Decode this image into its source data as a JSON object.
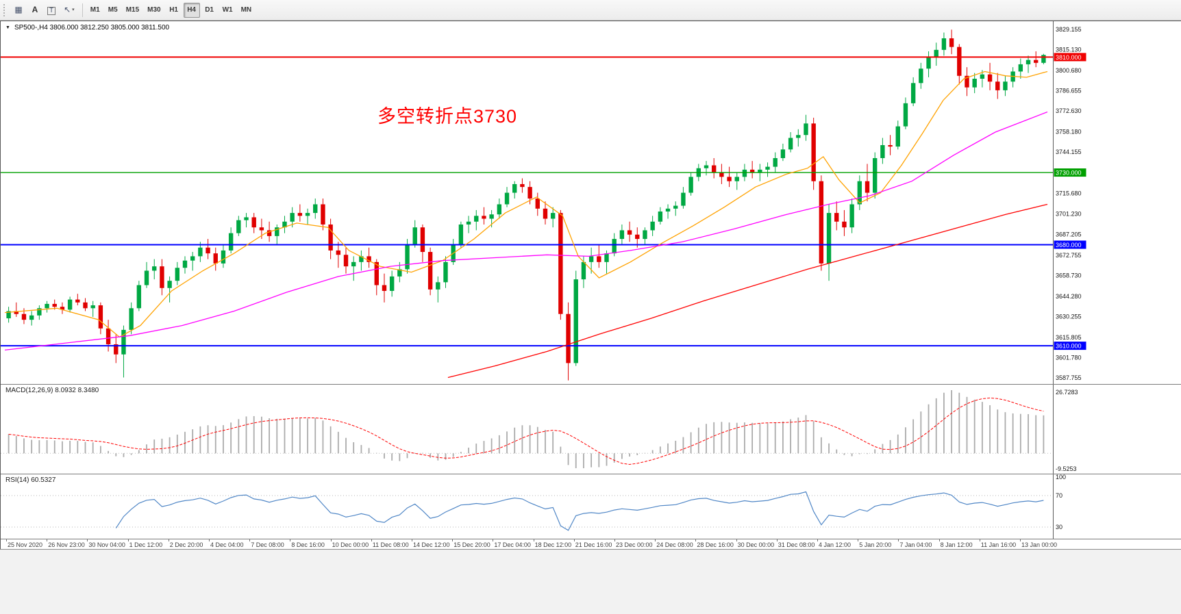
{
  "toolbar": {
    "tools": [
      {
        "name": "charts-panel-button",
        "glyph": "▦",
        "kind": "icon"
      },
      {
        "name": "font-tool-button",
        "glyph": "A",
        "kind": "letter"
      },
      {
        "name": "text-label-tool-button",
        "glyph": "T",
        "kind": "boxed"
      },
      {
        "name": "cursor-tool-button",
        "glyph": "↖",
        "kind": "icon",
        "dropdown_glyph": "▾"
      }
    ],
    "timeframes": [
      "M1",
      "M5",
      "M15",
      "M30",
      "H1",
      "H4",
      "D1",
      "W1",
      "MN"
    ],
    "active_timeframe": "H4"
  },
  "chart": {
    "one_click_glyph": "▼",
    "title_text": "SP500-,H4 3806.000 3812.250 3805.000 3811.500",
    "symbol": "SP500-",
    "timeframe": "H4",
    "annotation": {
      "text": "多空转折点3730",
      "color": "#FF0000"
    },
    "colors": {
      "bull": "#00A843",
      "bear": "#E00000",
      "ma_fast": "#FFA200",
      "ma_mid": "#FF00FF",
      "ma_slow": "#FF0000",
      "macd_histogram": "#ABABAB",
      "macd_signal": "#FF0000",
      "rsi_line": "#4F86C6"
    }
  },
  "chart_data": {
    "type": "candlestick",
    "symbol": "SP500-",
    "timeframe": "H4",
    "y_range": [
      3587.755,
      3829.155
    ],
    "y_axis_ticks": [
      "3829.155",
      "3815.130",
      "3800.680",
      "3786.655",
      "3772.630",
      "3758.180",
      "3744.155",
      "3730.130",
      "3715.680",
      "3701.230",
      "3687.205",
      "3672.755",
      "3658.730",
      "3644.280",
      "3630.255",
      "3615.805",
      "3601.780",
      "3587.755"
    ],
    "x_labels": [
      "25 Nov 2020",
      "26 Nov 23:00",
      "30 Nov 04:00",
      "1 Dec 12:00",
      "2 Dec 20:00",
      "4 Dec 04:00",
      "7 Dec 08:00",
      "8 Dec 16:00",
      "10 Dec 00:00",
      "11 Dec 08:00",
      "14 Dec 12:00",
      "15 Dec 20:00",
      "17 Dec 04:00",
      "18 Dec 12:00",
      "21 Dec 16:00",
      "23 Dec 00:00",
      "24 Dec 08:00",
      "28 Dec 16:00",
      "30 Dec 00:00",
      "31 Dec 08:00",
      "4 Jan 12:00",
      "5 Jan 20:00",
      "7 Jan 04:00",
      "8 Jan 12:00",
      "11 Jan 16:00",
      "13 Jan 00:00"
    ],
    "current_bar_ohlc": [
      3806.0,
      3812.25,
      3805.0,
      3811.5
    ],
    "candles_ohlc": [
      [
        3629,
        3637,
        3626,
        3634
      ],
      [
        3634,
        3640,
        3630,
        3632
      ],
      [
        3632,
        3636,
        3625,
        3628
      ],
      [
        3628,
        3634,
        3624,
        3631
      ],
      [
        3631,
        3638,
        3628,
        3636
      ],
      [
        3636,
        3641,
        3633,
        3639
      ],
      [
        3639,
        3642,
        3635,
        3637
      ],
      [
        3637,
        3640,
        3632,
        3635
      ],
      [
        3635,
        3644,
        3633,
        3642
      ],
      [
        3642,
        3646,
        3638,
        3640
      ],
      [
        3640,
        3643,
        3634,
        3636
      ],
      [
        3636,
        3641,
        3630,
        3638
      ],
      [
        3638,
        3640,
        3618,
        3622
      ],
      [
        3622,
        3628,
        3606,
        3611
      ],
      [
        3611,
        3618,
        3598,
        3604
      ],
      [
        3604,
        3624,
        3588,
        3621
      ],
      [
        3621,
        3640,
        3618,
        3636
      ],
      [
        3636,
        3655,
        3634,
        3652
      ],
      [
        3652,
        3668,
        3650,
        3662
      ],
      [
        3662,
        3670,
        3656,
        3665
      ],
      [
        3665,
        3670,
        3645,
        3650
      ],
      [
        3650,
        3658,
        3640,
        3655
      ],
      [
        3655,
        3668,
        3652,
        3664
      ],
      [
        3664,
        3672,
        3660,
        3669
      ],
      [
        3669,
        3675,
        3662,
        3672
      ],
      [
        3672,
        3682,
        3668,
        3678
      ],
      [
        3678,
        3684,
        3670,
        3674
      ],
      [
        3674,
        3678,
        3662,
        3667
      ],
      [
        3667,
        3680,
        3664,
        3676
      ],
      [
        3676,
        3692,
        3674,
        3688
      ],
      [
        3688,
        3700,
        3686,
        3697
      ],
      [
        3697,
        3702,
        3692,
        3699
      ],
      [
        3699,
        3702,
        3688,
        3692
      ],
      [
        3692,
        3698,
        3684,
        3690
      ],
      [
        3690,
        3696,
        3682,
        3686
      ],
      [
        3686,
        3694,
        3680,
        3692
      ],
      [
        3692,
        3700,
        3688,
        3696
      ],
      [
        3696,
        3706,
        3692,
        3702
      ],
      [
        3702,
        3708,
        3696,
        3700
      ],
      [
        3700,
        3705,
        3694,
        3702
      ],
      [
        3702,
        3712,
        3698,
        3708
      ],
      [
        3708,
        3712,
        3690,
        3694
      ],
      [
        3694,
        3698,
        3670,
        3676
      ],
      [
        3676,
        3682,
        3664,
        3673
      ],
      [
        3673,
        3678,
        3660,
        3665
      ],
      [
        3665,
        3672,
        3655,
        3668
      ],
      [
        3668,
        3676,
        3662,
        3672
      ],
      [
        3672,
        3678,
        3664,
        3668
      ],
      [
        3668,
        3670,
        3645,
        3652
      ],
      [
        3652,
        3660,
        3640,
        3648
      ],
      [
        3648,
        3662,
        3644,
        3658
      ],
      [
        3658,
        3668,
        3654,
        3663
      ],
      [
        3663,
        3684,
        3660,
        3680
      ],
      [
        3680,
        3697,
        3678,
        3692
      ],
      [
        3692,
        3694,
        3668,
        3675
      ],
      [
        3675,
        3678,
        3645,
        3649
      ],
      [
        3649,
        3658,
        3640,
        3654
      ],
      [
        3654,
        3672,
        3650,
        3668
      ],
      [
        3668,
        3684,
        3666,
        3680
      ],
      [
        3680,
        3696,
        3678,
        3694
      ],
      [
        3694,
        3700,
        3688,
        3696
      ],
      [
        3696,
        3704,
        3690,
        3700
      ],
      [
        3700,
        3706,
        3694,
        3698
      ],
      [
        3698,
        3704,
        3692,
        3701
      ],
      [
        3701,
        3712,
        3698,
        3708
      ],
      [
        3708,
        3720,
        3706,
        3716
      ],
      [
        3716,
        3724,
        3712,
        3722
      ],
      [
        3722,
        3726,
        3716,
        3720
      ],
      [
        3720,
        3724,
        3708,
        3712
      ],
      [
        3712,
        3716,
        3700,
        3705
      ],
      [
        3705,
        3710,
        3694,
        3698
      ],
      [
        3698,
        3706,
        3692,
        3702
      ],
      [
        3702,
        3704,
        3628,
        3632
      ],
      [
        3632,
        3640,
        3586,
        3598
      ],
      [
        3598,
        3662,
        3596,
        3656
      ],
      [
        3656,
        3672,
        3650,
        3668
      ],
      [
        3668,
        3678,
        3660,
        3672
      ],
      [
        3672,
        3680,
        3664,
        3668
      ],
      [
        3668,
        3676,
        3660,
        3674
      ],
      [
        3674,
        3688,
        3672,
        3684
      ],
      [
        3684,
        3694,
        3680,
        3690
      ],
      [
        3690,
        3696,
        3682,
        3687
      ],
      [
        3687,
        3692,
        3678,
        3684
      ],
      [
        3684,
        3692,
        3680,
        3690
      ],
      [
        3690,
        3700,
        3686,
        3696
      ],
      [
        3696,
        3706,
        3694,
        3703
      ],
      [
        3703,
        3708,
        3698,
        3705
      ],
      [
        3705,
        3710,
        3700,
        3707
      ],
      [
        3707,
        3720,
        3705,
        3716
      ],
      [
        3716,
        3730,
        3714,
        3727
      ],
      [
        3727,
        3736,
        3724,
        3733
      ],
      [
        3733,
        3738,
        3728,
        3735
      ],
      [
        3735,
        3740,
        3726,
        3730
      ],
      [
        3730,
        3736,
        3722,
        3727
      ],
      [
        3727,
        3734,
        3720,
        3724
      ],
      [
        3724,
        3730,
        3718,
        3727
      ],
      [
        3727,
        3736,
        3724,
        3732
      ],
      [
        3732,
        3738,
        3726,
        3730
      ],
      [
        3730,
        3736,
        3724,
        3732
      ],
      [
        3732,
        3737,
        3727,
        3734
      ],
      [
        3734,
        3744,
        3730,
        3740
      ],
      [
        3740,
        3750,
        3738,
        3746
      ],
      [
        3746,
        3758,
        3744,
        3754
      ],
      [
        3754,
        3760,
        3748,
        3756
      ],
      [
        3756,
        3770,
        3752,
        3764
      ],
      [
        3764,
        3768,
        3718,
        3724
      ],
      [
        3724,
        3728,
        3662,
        3667
      ],
      [
        3667,
        3708,
        3655,
        3702
      ],
      [
        3702,
        3710,
        3690,
        3696
      ],
      [
        3696,
        3704,
        3686,
        3692
      ],
      [
        3692,
        3712,
        3688,
        3708
      ],
      [
        3708,
        3728,
        3704,
        3724
      ],
      [
        3724,
        3736,
        3710,
        3716
      ],
      [
        3716,
        3744,
        3712,
        3740
      ],
      [
        3740,
        3754,
        3736,
        3749
      ],
      [
        3749,
        3756,
        3742,
        3748
      ],
      [
        3748,
        3766,
        3746,
        3762
      ],
      [
        3762,
        3782,
        3760,
        3778
      ],
      [
        3778,
        3796,
        3776,
        3792
      ],
      [
        3792,
        3806,
        3788,
        3802
      ],
      [
        3802,
        3814,
        3796,
        3810
      ],
      [
        3810,
        3820,
        3804,
        3815
      ],
      [
        3815,
        3827,
        3811,
        3823
      ],
      [
        3823,
        3829,
        3812,
        3817
      ],
      [
        3817,
        3819,
        3791,
        3797
      ],
      [
        3797,
        3803,
        3783,
        3789
      ],
      [
        3789,
        3799,
        3785,
        3795
      ],
      [
        3795,
        3801,
        3789,
        3798
      ],
      [
        3798,
        3806,
        3787,
        3793
      ],
      [
        3793,
        3799,
        3781,
        3787
      ],
      [
        3787,
        3797,
        3783,
        3793
      ],
      [
        3793,
        3803,
        3789,
        3800
      ],
      [
        3800,
        3809,
        3795,
        3805
      ],
      [
        3805,
        3811,
        3799,
        3808
      ],
      [
        3808,
        3814,
        3803,
        3806
      ],
      [
        3806,
        3812.25,
        3805,
        3811.5
      ]
    ],
    "horizontal_lines": [
      {
        "price": 3810.0,
        "label": "3810.000",
        "color": "#F00000",
        "width": 2
      },
      {
        "price": 3730.0,
        "label": "3730.000",
        "color": "#00A000",
        "width": 1.3
      },
      {
        "price": 3680.0,
        "label": "3680.000",
        "color": "#0000FF",
        "width": 2
      },
      {
        "price": 3610.0,
        "label": "3610.000",
        "color": "#0000FF",
        "width": 2
      }
    ],
    "moving_averages": [
      {
        "name": "ma-fast-orange",
        "color": "#FFA200",
        "points": [
          [
            0.0,
            3633
          ],
          [
            0.05,
            3636
          ],
          [
            0.09,
            3628
          ],
          [
            0.11,
            3616
          ],
          [
            0.13,
            3624
          ],
          [
            0.16,
            3648
          ],
          [
            0.19,
            3662
          ],
          [
            0.22,
            3674
          ],
          [
            0.25,
            3688
          ],
          [
            0.28,
            3695
          ],
          [
            0.31,
            3692
          ],
          [
            0.33,
            3676
          ],
          [
            0.36,
            3665
          ],
          [
            0.39,
            3661
          ],
          [
            0.42,
            3669
          ],
          [
            0.45,
            3684
          ],
          [
            0.48,
            3702
          ],
          [
            0.51,
            3713
          ],
          [
            0.535,
            3700
          ],
          [
            0.55,
            3672
          ],
          [
            0.57,
            3657
          ],
          [
            0.6,
            3668
          ],
          [
            0.63,
            3681
          ],
          [
            0.66,
            3693
          ],
          [
            0.69,
            3706
          ],
          [
            0.72,
            3720
          ],
          [
            0.75,
            3729
          ],
          [
            0.77,
            3733
          ],
          [
            0.785,
            3741
          ],
          [
            0.8,
            3725
          ],
          [
            0.82,
            3709
          ],
          [
            0.84,
            3716
          ],
          [
            0.86,
            3735
          ],
          [
            0.88,
            3757
          ],
          [
            0.9,
            3780
          ],
          [
            0.92,
            3795
          ],
          [
            0.94,
            3800
          ],
          [
            0.96,
            3797
          ],
          [
            0.98,
            3796
          ],
          [
            1.0,
            3800
          ]
        ]
      },
      {
        "name": "ma-mid-magenta",
        "color": "#FF00FF",
        "points": [
          [
            0.0,
            3607
          ],
          [
            0.06,
            3612
          ],
          [
            0.12,
            3617
          ],
          [
            0.17,
            3624
          ],
          [
            0.22,
            3634
          ],
          [
            0.27,
            3647
          ],
          [
            0.32,
            3658
          ],
          [
            0.37,
            3665
          ],
          [
            0.42,
            3669
          ],
          [
            0.47,
            3671
          ],
          [
            0.52,
            3673
          ],
          [
            0.56,
            3672
          ],
          [
            0.6,
            3676
          ],
          [
            0.65,
            3682
          ],
          [
            0.7,
            3691
          ],
          [
            0.75,
            3701
          ],
          [
            0.79,
            3708
          ],
          [
            0.83,
            3714
          ],
          [
            0.87,
            3724
          ],
          [
            0.91,
            3742
          ],
          [
            0.95,
            3758
          ],
          [
            1.0,
            3772
          ]
        ]
      },
      {
        "name": "ma-slow-red",
        "color": "#FF0000",
        "points": [
          [
            0.425,
            3588
          ],
          [
            0.47,
            3596
          ],
          [
            0.52,
            3606
          ],
          [
            0.57,
            3618
          ],
          [
            0.62,
            3629
          ],
          [
            0.67,
            3641
          ],
          [
            0.72,
            3652
          ],
          [
            0.77,
            3663
          ],
          [
            0.82,
            3673
          ],
          [
            0.87,
            3683
          ],
          [
            0.92,
            3693
          ],
          [
            0.96,
            3701
          ],
          [
            1.0,
            3708
          ]
        ]
      }
    ],
    "indicator_panels": [
      {
        "type": "MACD",
        "label": "MACD(12,26,9) 8.0932 8.3480",
        "params": [
          12,
          26,
          9
        ],
        "current_values": [
          8.0932,
          8.348
        ],
        "scale_top": "26.7283",
        "scale_bottom": "-9.5253"
      },
      {
        "type": "RSI",
        "label": "RSI(14) 60.5327",
        "params": [
          14
        ],
        "current_value": 60.5327,
        "scale_labels": [
          "100",
          "70",
          "30"
        ],
        "levels": [
          70,
          30
        ]
      }
    ]
  }
}
